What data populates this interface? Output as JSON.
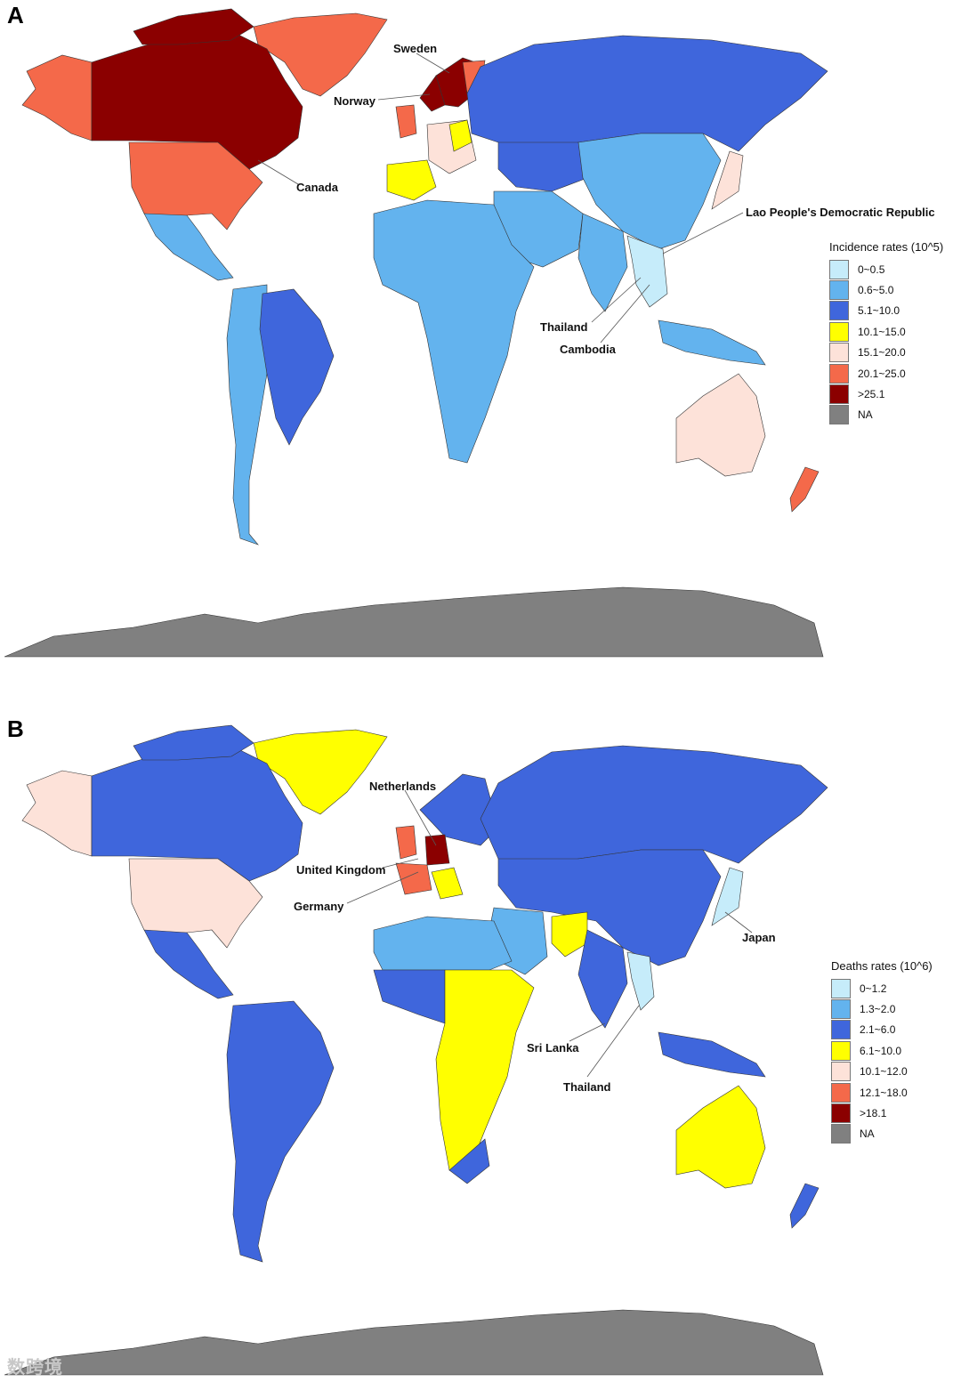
{
  "panels": [
    {
      "letter": "A",
      "legend_title": "Incidence rates (10^5)",
      "legend": [
        {
          "label": "0~0.5",
          "color": "#c6ecfa"
        },
        {
          "label": "0.6~5.0",
          "color": "#63b3ee"
        },
        {
          "label": "5.1~10.0",
          "color": "#3f66dc"
        },
        {
          "label": "10.1~15.0",
          "color": "#ffff00"
        },
        {
          "label": "15.1~20.0",
          "color": "#fde2d9"
        },
        {
          "label": "20.1~25.0",
          "color": "#f4694a"
        },
        {
          "label": ">25.1",
          "color": "#8b0000"
        },
        {
          "label": "NA",
          "color": "#808080"
        }
      ],
      "callouts": [
        "Sweden",
        "Norway",
        "Canada",
        "Lao People's Democratic Republic",
        "Thailand",
        "Cambodia"
      ]
    },
    {
      "letter": "B",
      "legend_title": "Deaths rates (10^6)",
      "legend": [
        {
          "label": "0~1.2",
          "color": "#c6ecfa"
        },
        {
          "label": "1.3~2.0",
          "color": "#63b3ee"
        },
        {
          "label": "2.1~6.0",
          "color": "#3f66dc"
        },
        {
          "label": "6.1~10.0",
          "color": "#ffff00"
        },
        {
          "label": "10.1~12.0",
          "color": "#fde2d9"
        },
        {
          "label": "12.1~18.0",
          "color": "#f4694a"
        },
        {
          "label": ">18.1",
          "color": "#8b0000"
        },
        {
          "label": "NA",
          "color": "#808080"
        }
      ],
      "callouts": [
        "Netherlands",
        "United Kingdom",
        "Germany",
        "Japan",
        "Sri Lanka",
        "Thailand"
      ]
    }
  ],
  "watermark": "数跨境"
}
